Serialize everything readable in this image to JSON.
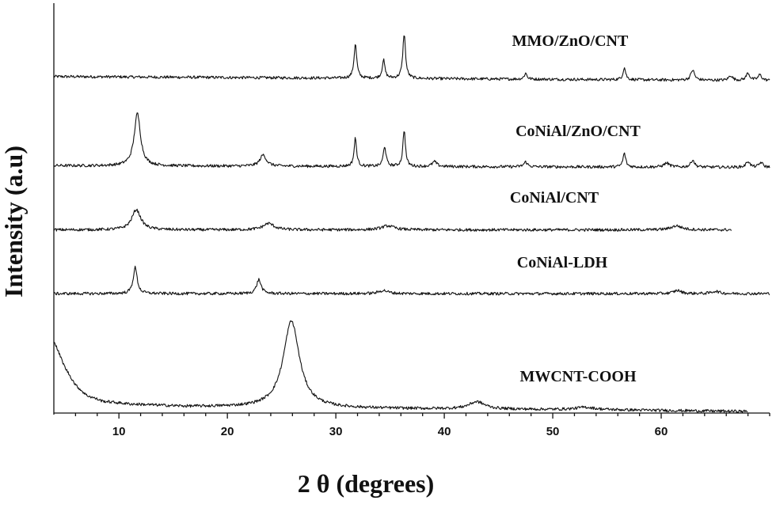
{
  "chart_data": {
    "type": "line",
    "xlabel": "2 θ (degrees)",
    "ylabel": "Intensity (a.u)",
    "xlim": [
      4,
      70
    ],
    "xticks": [
      10,
      20,
      30,
      40,
      50,
      60
    ],
    "y_units": "arbitrary",
    "series": [
      {
        "name": "MMO/ZnO/CNT",
        "offset": 0.82,
        "xmax": 70,
        "base": 0.0,
        "bg": [
          [
            4,
            0.01
          ],
          [
            70,
            0.0
          ]
        ],
        "peaks": [
          [
            31.8,
            0.085,
            0.15
          ],
          [
            34.4,
            0.045,
            0.15
          ],
          [
            36.3,
            0.11,
            0.15
          ],
          [
            47.5,
            0.015,
            0.15
          ],
          [
            56.6,
            0.03,
            0.15
          ],
          [
            62.9,
            0.025,
            0.2
          ],
          [
            66.4,
            0.012,
            0.2
          ],
          [
            68.0,
            0.018,
            0.2
          ],
          [
            69.1,
            0.014,
            0.2
          ]
        ]
      },
      {
        "name": "CoNiAl/ZnO/CNT",
        "offset": 0.605,
        "xmax": 70,
        "base": 0.0,
        "bg": [
          [
            4,
            0.004
          ],
          [
            70,
            0.0
          ]
        ],
        "peaks": [
          [
            11.7,
            0.13,
            0.35
          ],
          [
            23.3,
            0.028,
            0.35
          ],
          [
            31.8,
            0.07,
            0.14
          ],
          [
            34.5,
            0.05,
            0.15
          ],
          [
            36.3,
            0.09,
            0.14
          ],
          [
            39.1,
            0.012,
            0.25
          ],
          [
            47.5,
            0.012,
            0.2
          ],
          [
            56.6,
            0.034,
            0.15
          ],
          [
            60.5,
            0.01,
            0.3
          ],
          [
            62.9,
            0.018,
            0.2
          ],
          [
            68.0,
            0.015,
            0.2
          ],
          [
            69.2,
            0.012,
            0.2
          ]
        ]
      },
      {
        "name": "CoNiAl/CNT",
        "offset": 0.45,
        "xmax": 66.5,
        "base": 0.0,
        "bg": [
          [
            4,
            0.0
          ],
          [
            66.5,
            0.0
          ]
        ],
        "peaks": [
          [
            11.6,
            0.05,
            0.5
          ],
          [
            23.8,
            0.016,
            0.6
          ],
          [
            34.8,
            0.01,
            0.7
          ],
          [
            61.4,
            0.01,
            0.6
          ]
        ]
      },
      {
        "name": "CoNiAl-LDH",
        "offset": 0.292,
        "xmax": 70,
        "base": 0.0,
        "bg": [
          [
            4,
            0.0
          ],
          [
            70,
            0.0
          ]
        ],
        "peaks": [
          [
            11.5,
            0.065,
            0.22
          ],
          [
            22.9,
            0.035,
            0.25
          ],
          [
            34.4,
            0.008,
            0.5
          ],
          [
            61.5,
            0.008,
            0.4
          ],
          [
            65.0,
            0.006,
            0.4
          ]
        ]
      },
      {
        "name": "MWCNT-COOH",
        "offset": 0.0,
        "xmax": 68,
        "base": 0.0,
        "bg": [
          [
            4,
            0.175
          ],
          [
            5,
            0.11
          ],
          [
            6,
            0.065
          ],
          [
            7,
            0.04
          ],
          [
            8.5,
            0.025
          ],
          [
            11,
            0.018
          ],
          [
            16,
            0.012
          ],
          [
            22,
            0.01
          ],
          [
            29,
            0.008
          ],
          [
            40,
            0.006
          ],
          [
            55,
            0.004
          ],
          [
            68,
            0.0
          ]
        ],
        "peaks": [
          [
            25.9,
            0.215,
            0.9
          ],
          [
            43.0,
            0.018,
            0.9
          ],
          [
            53.0,
            0.006,
            1.0
          ]
        ]
      }
    ]
  }
}
